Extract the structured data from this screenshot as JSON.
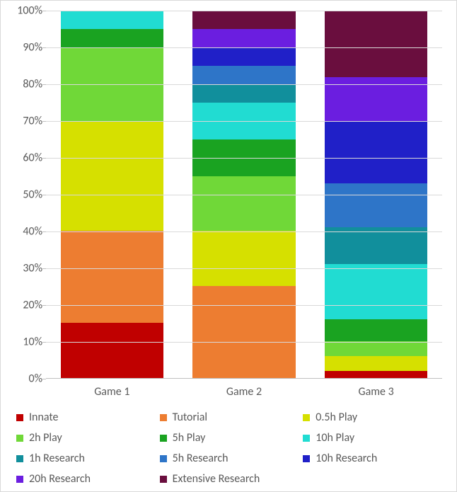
{
  "chart": {
    "type": "stacked-bar-100pct",
    "background_color": "#ffffff",
    "border_color": "#d9d9d9",
    "grid_color": "#d9d9d9",
    "axis_color": "#bfbfbf",
    "text_color": "#595959",
    "font_family": "Segoe UI, Calibri, Arial",
    "axis_fontsize": 16,
    "legend_fontsize": 16,
    "ylim": [
      0,
      100
    ],
    "ytick_step": 10,
    "y_suffix": "%",
    "y_ticks": [
      "0%",
      "10%",
      "20%",
      "30%",
      "40%",
      "50%",
      "60%",
      "70%",
      "80%",
      "90%",
      "100%"
    ],
    "categories": [
      "Game 1",
      "Game 2",
      "Game 3"
    ],
    "bar_width_pct": 26,
    "series": [
      {
        "name": "Innate",
        "color": "#c00000"
      },
      {
        "name": "Tutorial",
        "color": "#ed7d31"
      },
      {
        "name": "0.5h Play",
        "color": "#d6e000"
      },
      {
        "name": "2h Play",
        "color": "#70d838"
      },
      {
        "name": "5h Play",
        "color": "#1aa321"
      },
      {
        "name": "10h Play",
        "color": "#21dcd2"
      },
      {
        "name": "1h Research",
        "color": "#118f9c"
      },
      {
        "name": "5h Research",
        "color": "#2e75c8"
      },
      {
        "name": "10h Research",
        "color": "#2020c8"
      },
      {
        "name": "20h Research",
        "color": "#6b1ee0"
      },
      {
        "name": "Extensive Research",
        "color": "#6a0e3e"
      }
    ],
    "values": [
      [
        15,
        25,
        30,
        20,
        5,
        5,
        0,
        0,
        0,
        0,
        0
      ],
      [
        0,
        25,
        15,
        15,
        10,
        10,
        5,
        5,
        5,
        5,
        5
      ],
      [
        2,
        0,
        4,
        4,
        6,
        15,
        10,
        12,
        17,
        12,
        18
      ]
    ]
  }
}
